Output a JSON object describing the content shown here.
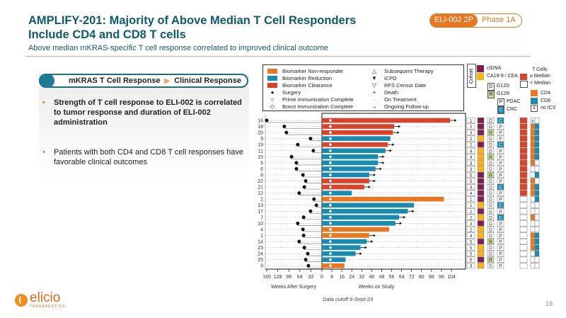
{
  "header": {
    "title": "AMPLIFY-201: Majority of Above Median T Cell Responders Include CD4 and CD8 T cells",
    "subtitle": "Above median mKRAS-specific T cell response correlated to improved clinical outcome",
    "badge_primary": "ELI-002 2P",
    "badge_secondary": "Phase 1A"
  },
  "panel": {
    "pill_left": "mKRAS T Cell Response",
    "pill_right": "Clinical Response",
    "bullets": [
      "Strength of T cell response to ELI-002 is correlated to tumor response and duration of ELI-002 administration",
      "Patients with both CD4 and CD8 T cell responses have favorable clinical outcomes"
    ]
  },
  "legend": {
    "items_left": [
      {
        "label": "Biomarker Non-responder",
        "color": "#e87722"
      },
      {
        "label": "Biomarker Reduction",
        "color": "#1a8bb0"
      },
      {
        "label": "Biomarker Clearance",
        "color": "#d9432b"
      },
      {
        "label": "Surgery",
        "symbol": "●"
      },
      {
        "label": "Prime Immunization Complete",
        "symbol": "○"
      },
      {
        "label": "Boost Immunization Complete",
        "symbol": "◇"
      }
    ],
    "items_right": [
      {
        "label": "Subsequent Therapy",
        "symbol": "△"
      },
      {
        "label": "iCPD",
        "symbol": "▼"
      },
      {
        "label": "RFS Censor Date",
        "symbol": "▽"
      },
      {
        "label": "Death",
        "symbol": "+"
      },
      {
        "label": "On Treatment",
        "symbol": "→",
        "color": "#c8d89a"
      },
      {
        "label": "Ongoing Follow-up",
        "symbol": "→",
        "color": "#111"
      }
    ]
  },
  "right_legend": {
    "cohort": "Cohort",
    "ctdna": "ctDNA",
    "ca199": "CA19-9 / CEA",
    "g12d_code": "D",
    "g12d": "G12D",
    "g12r_code": "R",
    "g12r": "G12R",
    "pdac_code": "P",
    "pdac": "PDAC",
    "crc_code": "C",
    "crc": "CRC",
    "tcells": "T Cells",
    "above_median": "≥ Median",
    "below_median": "< Median",
    "cd4": "CD4",
    "cd8": "CD8",
    "noics_code": "x",
    "noics": "no ICS"
  },
  "colors": {
    "nonresponder": "#e87722",
    "reduction": "#1a8bb0",
    "clearance": "#d9432b",
    "ctdna": "#7b2150",
    "ca199": "#fbb216",
    "g12r": "#c8d89a",
    "crc": "#1a8bb0",
    "cd4": "#e87722",
    "cd8": "#1a8bb0",
    "above_median": "#d9432b"
  },
  "chart_data": {
    "type": "bar",
    "title": "Swimmer plot",
    "xlabel_left": "Weeks After Surgery",
    "xlabel_right": "Weeks on Study",
    "xticks_left": [
      160,
      128,
      96,
      64,
      32,
      0
    ],
    "xticks_right": [
      0,
      8,
      16,
      24,
      32,
      40,
      48,
      56,
      64,
      72,
      80,
      88,
      96,
      104
    ],
    "xlim_left": [
      160,
      0
    ],
    "xlim_right": [
      0,
      104
    ],
    "patients": [
      {
        "id": "16",
        "weeks_on_study": 103,
        "weeks_after_surgery": 160,
        "response": "clearance",
        "ongoing": true,
        "cohort": "1",
        "biomarker": "ctdna",
        "mutation": "D",
        "tumor": "C",
        "tcell_above_median": true,
        "cd4": false,
        "cd8": false,
        "no_ics": true
      },
      {
        "id": "18",
        "weeks_on_study": 58,
        "weeks_after_surgery": 109,
        "response": "clearance",
        "ongoing": true,
        "cohort": "2",
        "biomarker": "ctdna",
        "mutation": "D",
        "tumor": "P",
        "tcell_above_median": true,
        "cd4": true,
        "cd8": true
      },
      {
        "id": "20",
        "weeks_on_study": 57,
        "weeks_after_surgery": 103,
        "response": "clearance",
        "ongoing": true,
        "cohort": "3",
        "biomarker": "ctdna",
        "mutation": "R",
        "tumor": "P",
        "tcell_above_median": true,
        "cd4": true,
        "cd8": true
      },
      {
        "id": "9",
        "weeks_on_study": 55,
        "weeks_after_surgery": 33,
        "response": "reduction",
        "ongoing": false,
        "cohort": "2",
        "biomarker": "ca199",
        "mutation": "D",
        "tumor": "P",
        "tcell_above_median": true,
        "cd4": true,
        "cd8": true
      },
      {
        "id": "19",
        "weeks_on_study": 53,
        "weeks_after_surgery": 70,
        "response": "clearance",
        "ongoing": true,
        "cohort": "2",
        "biomarker": "ctdna",
        "mutation": "D",
        "tumor": "C",
        "tcell_above_median": true,
        "cd4": true,
        "cd8": true
      },
      {
        "id": "11",
        "weeks_on_study": 51,
        "weeks_after_surgery": 25,
        "response": "reduction",
        "ongoing": true,
        "cohort": "4",
        "biomarker": "ca199",
        "mutation": "D",
        "tumor": "P",
        "tcell_above_median": true,
        "cd4": true,
        "cd8": true
      },
      {
        "id": "15",
        "weeks_on_study": 45,
        "weeks_after_surgery": 88,
        "response": "reduction",
        "ongoing": true,
        "cohort": "4",
        "biomarker": "ca199",
        "mutation": "R",
        "tumor": "P",
        "tcell_above_median": true,
        "cd4": true,
        "cd8": true
      },
      {
        "id": "5",
        "weeks_on_study": 45,
        "weeks_after_surgery": 74,
        "response": "reduction",
        "ongoing": true,
        "cohort": "3",
        "biomarker": "ca199",
        "mutation": "D",
        "tumor": "P",
        "tcell_above_median": true,
        "cd4": true,
        "cd8": false
      },
      {
        "id": "6",
        "weeks_on_study": 43,
        "weeks_after_surgery": 74,
        "response": "reduction",
        "ongoing": true,
        "cohort": "3",
        "biomarker": "ca199",
        "mutation": "D",
        "tumor": "P",
        "tcell_above_median": true,
        "cd4": false,
        "cd8": false
      },
      {
        "id": "8",
        "weeks_on_study": 38,
        "weeks_after_surgery": 55,
        "response": "reduction",
        "ongoing": true,
        "cohort": "5",
        "biomarker": "ctdna",
        "mutation": "R",
        "tumor": "P",
        "tcell_above_median": true,
        "cd4": false,
        "cd8": true
      },
      {
        "id": "22",
        "weeks_on_study": 38,
        "weeks_after_surgery": 47,
        "response": "clearance",
        "ongoing": true,
        "cohort": "5",
        "biomarker": "ctdna",
        "mutation": "D",
        "tumor": "P",
        "tcell_above_median": true,
        "cd4": true,
        "cd8": false
      },
      {
        "id": "21",
        "weeks_on_study": 34,
        "weeks_after_surgery": 51,
        "response": "clearance",
        "ongoing": true,
        "cohort": "4",
        "biomarker": "ctdna",
        "mutation": "D",
        "tumor": "C",
        "tcell_above_median": true,
        "cd4": true,
        "cd8": true
      },
      {
        "id": "12",
        "weeks_on_study": 24,
        "weeks_after_surgery": 66,
        "response": "reduction",
        "ongoing": false,
        "cohort": "4",
        "biomarker": "ctdna",
        "mutation": "D",
        "tumor": "P",
        "tcell_above_median": true,
        "cd4": true,
        "cd8": true
      },
      {
        "id": "2",
        "weeks_on_study": 98,
        "weeks_after_surgery": 23,
        "response": "nonresponder",
        "ongoing": false,
        "cohort": "1",
        "biomarker": "ctdna",
        "mutation": "D",
        "tumor": "P",
        "tcell_above_median": false,
        "cd4": false,
        "cd8": true
      },
      {
        "id": "13",
        "weeks_on_study": 74,
        "weeks_after_surgery": 16,
        "response": "reduction",
        "ongoing": false,
        "cohort": "1",
        "biomarker": "ca199",
        "mutation": "D",
        "tumor": "C",
        "tcell_above_median": false,
        "cd4": false,
        "cd8": false
      },
      {
        "id": "17",
        "weeks_on_study": 69,
        "weeks_after_surgery": 33,
        "response": "reduction",
        "ongoing": true,
        "cohort": "2",
        "biomarker": "ctdna",
        "mutation": "D",
        "tumor": "P",
        "tcell_above_median": false,
        "cd4": false,
        "cd8": false
      },
      {
        "id": "7",
        "weeks_on_study": 62,
        "weeks_after_surgery": 53,
        "response": "reduction",
        "ongoing": true,
        "cohort": "2",
        "biomarker": "ca199",
        "mutation": "D",
        "tumor": "C",
        "tcell_above_median": false,
        "cd4": true,
        "cd8": false
      },
      {
        "id": "10",
        "weeks_on_study": 59,
        "weeks_after_surgery": 70,
        "response": "reduction",
        "ongoing": true,
        "cohort": "3",
        "biomarker": "ctdna",
        "mutation": "D",
        "tumor": "P",
        "tcell_above_median": false,
        "cd4": false,
        "cd8": false
      },
      {
        "id": "4",
        "weeks_on_study": 54,
        "weeks_after_surgery": 55,
        "response": "nonresponder",
        "ongoing": false,
        "cohort": "2",
        "biomarker": "ca199",
        "mutation": "D",
        "tumor": "P",
        "tcell_above_median": false,
        "cd4": false,
        "cd8": false
      },
      {
        "id": "1",
        "weeks_on_study": 38,
        "weeks_after_surgery": 53,
        "response": "nonresponder",
        "ongoing": true,
        "cohort": "4",
        "biomarker": "ca199",
        "mutation": "D",
        "tumor": "P",
        "tcell_above_median": false,
        "cd4": true,
        "cd8": true
      },
      {
        "id": "14",
        "weeks_on_study": 36,
        "weeks_after_surgery": 66,
        "response": "reduction",
        "ongoing": true,
        "cohort": "5",
        "biomarker": "ctdna",
        "mutation": "R",
        "tumor": "P",
        "tcell_above_median": false,
        "cd4": true,
        "cd8": true
      },
      {
        "id": "23",
        "weeks_on_study": 31,
        "weeks_after_surgery": 51,
        "response": "reduction",
        "ongoing": true,
        "cohort": "5",
        "biomarker": "ca199",
        "mutation": "D",
        "tumor": "P",
        "tcell_above_median": false,
        "cd4": true,
        "cd8": true
      },
      {
        "id": "24",
        "weeks_on_study": 27,
        "weeks_after_surgery": 41,
        "response": "reduction",
        "ongoing": true,
        "cohort": "5",
        "biomarker": "ca199",
        "mutation": "D",
        "tumor": "P",
        "tcell_above_median": false,
        "cd4": false,
        "cd8": true
      },
      {
        "id": "25",
        "weeks_on_study": 19,
        "weeks_after_surgery": 47,
        "response": "reduction",
        "ongoing": false,
        "cohort": "5",
        "biomarker": "ctdna",
        "mutation": "R",
        "tumor": "P",
        "tcell_above_median": false,
        "cd4": false,
        "cd8": false
      },
      {
        "id": "3",
        "weeks_on_study": 18,
        "weeks_after_surgery": 39,
        "response": "nonresponder",
        "ongoing": false,
        "cohort": "3",
        "biomarker": "ca199",
        "mutation": "D",
        "tumor": "P",
        "tcell_above_median": false,
        "cd4": false,
        "cd8": false
      }
    ]
  },
  "footer": {
    "cutoff": "Data cutoff 6-Sept-23",
    "page": "19",
    "logo_name": "elicio",
    "logo_sub": "THERAPEUTICS"
  }
}
